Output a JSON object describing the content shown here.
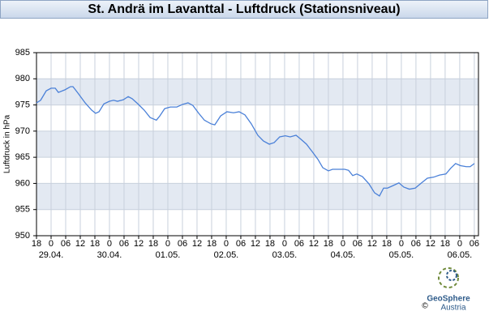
{
  "chart_data": {
    "type": "line",
    "title": "St. Andrä im Lavanttal - Luftdruck (Stationsniveau)",
    "ylabel": "Luftdruck in hPa",
    "ylim": [
      950,
      985
    ],
    "yticks": [
      950,
      955,
      960,
      965,
      970,
      975,
      980,
      985
    ],
    "xlim": [
      -6,
      175.7
    ],
    "xticks": [
      {
        "value": -6,
        "label": "18"
      },
      {
        "value": 0,
        "label": "0"
      },
      {
        "value": 6,
        "label": "06"
      },
      {
        "value": 12,
        "label": "12"
      },
      {
        "value": 18,
        "label": "18"
      },
      {
        "value": 24,
        "label": "0"
      },
      {
        "value": 30,
        "label": "06"
      },
      {
        "value": 36,
        "label": "12"
      },
      {
        "value": 42,
        "label": "18"
      },
      {
        "value": 48,
        "label": "0"
      },
      {
        "value": 54,
        "label": "06"
      },
      {
        "value": 60,
        "label": "12"
      },
      {
        "value": 66,
        "label": "18"
      },
      {
        "value": 72,
        "label": "0"
      },
      {
        "value": 78,
        "label": "06"
      },
      {
        "value": 84,
        "label": "12"
      },
      {
        "value": 90,
        "label": "18"
      },
      {
        "value": 96,
        "label": "0"
      },
      {
        "value": 102,
        "label": "06"
      },
      {
        "value": 108,
        "label": "12"
      },
      {
        "value": 114,
        "label": "18"
      },
      {
        "value": 120,
        "label": "0"
      },
      {
        "value": 126,
        "label": "06"
      },
      {
        "value": 132,
        "label": "12"
      },
      {
        "value": 138,
        "label": "18"
      },
      {
        "value": 144,
        "label": "0"
      },
      {
        "value": 150,
        "label": "06"
      },
      {
        "value": 156,
        "label": "12"
      },
      {
        "value": 162,
        "label": "18"
      },
      {
        "value": 168,
        "label": "0"
      },
      {
        "value": 174,
        "label": "06"
      }
    ],
    "date_ticks": [
      {
        "value": 0,
        "label": "29.04."
      },
      {
        "value": 24,
        "label": "30.04."
      },
      {
        "value": 48,
        "label": "01.05."
      },
      {
        "value": 72,
        "label": "02.05."
      },
      {
        "value": 96,
        "label": "03.05."
      },
      {
        "value": 120,
        "label": "04.05."
      },
      {
        "value": 144,
        "label": "05.05."
      },
      {
        "value": 168,
        "label": "06.05."
      }
    ],
    "grid": true,
    "color": "#4a80d8",
    "x": [
      -6,
      -4.3,
      -2,
      0,
      1.7,
      3,
      5.7,
      8,
      9,
      11,
      14,
      16.7,
      18.3,
      19.7,
      21.7,
      24,
      25.7,
      27.3,
      29.7,
      31.7,
      33.3,
      35.7,
      38.3,
      40.7,
      43.3,
      44.7,
      46.7,
      49,
      51.7,
      54,
      56.3,
      58.3,
      60.7,
      63,
      65.7,
      67.3,
      69.7,
      72.3,
      75,
      77.3,
      79.7,
      82.3,
      85,
      87.3,
      89.7,
      91.7,
      94,
      96.3,
      98.3,
      100.7,
      102.3,
      105,
      107.3,
      109.7,
      111.7,
      114,
      115.7,
      118.3,
      120.7,
      122.3,
      124,
      125.7,
      128,
      130.7,
      133,
      135,
      136.7,
      138.3,
      140.7,
      143,
      145,
      147.3,
      149.7,
      152.3,
      154.7,
      157.3,
      159.7,
      162.3,
      164.3,
      166.3,
      168.3,
      170.7,
      172.3,
      174
    ],
    "values": [
      975.4,
      975.9,
      977.7,
      978.2,
      978.2,
      977.4,
      977.9,
      978.5,
      978.5,
      977.3,
      975.4,
      974.0,
      973.4,
      973.7,
      975.2,
      975.7,
      975.9,
      975.7,
      976.0,
      976.6,
      976.2,
      975.2,
      974.0,
      972.6,
      972.1,
      972.9,
      974.3,
      974.6,
      974.6,
      975.1,
      975.4,
      974.9,
      973.4,
      972.1,
      971.4,
      971.2,
      972.9,
      973.7,
      973.5,
      973.7,
      973.1,
      971.4,
      969.2,
      968.1,
      967.5,
      967.8,
      968.9,
      969.1,
      968.9,
      969.2,
      968.6,
      967.5,
      966.1,
      964.6,
      963.0,
      962.4,
      962.7,
      962.7,
      962.7,
      962.5,
      961.5,
      961.8,
      961.3,
      959.9,
      958.2,
      957.6,
      959.1,
      959.1,
      959.6,
      960.1,
      959.3,
      958.9,
      959.1,
      960.1,
      961.0,
      961.2,
      961.6,
      961.8,
      962.9,
      963.8,
      963.4,
      963.2,
      963.2,
      963.8
    ]
  },
  "branding": {
    "name": "GeoSphere",
    "subname": "Austria",
    "copyright": "©"
  }
}
